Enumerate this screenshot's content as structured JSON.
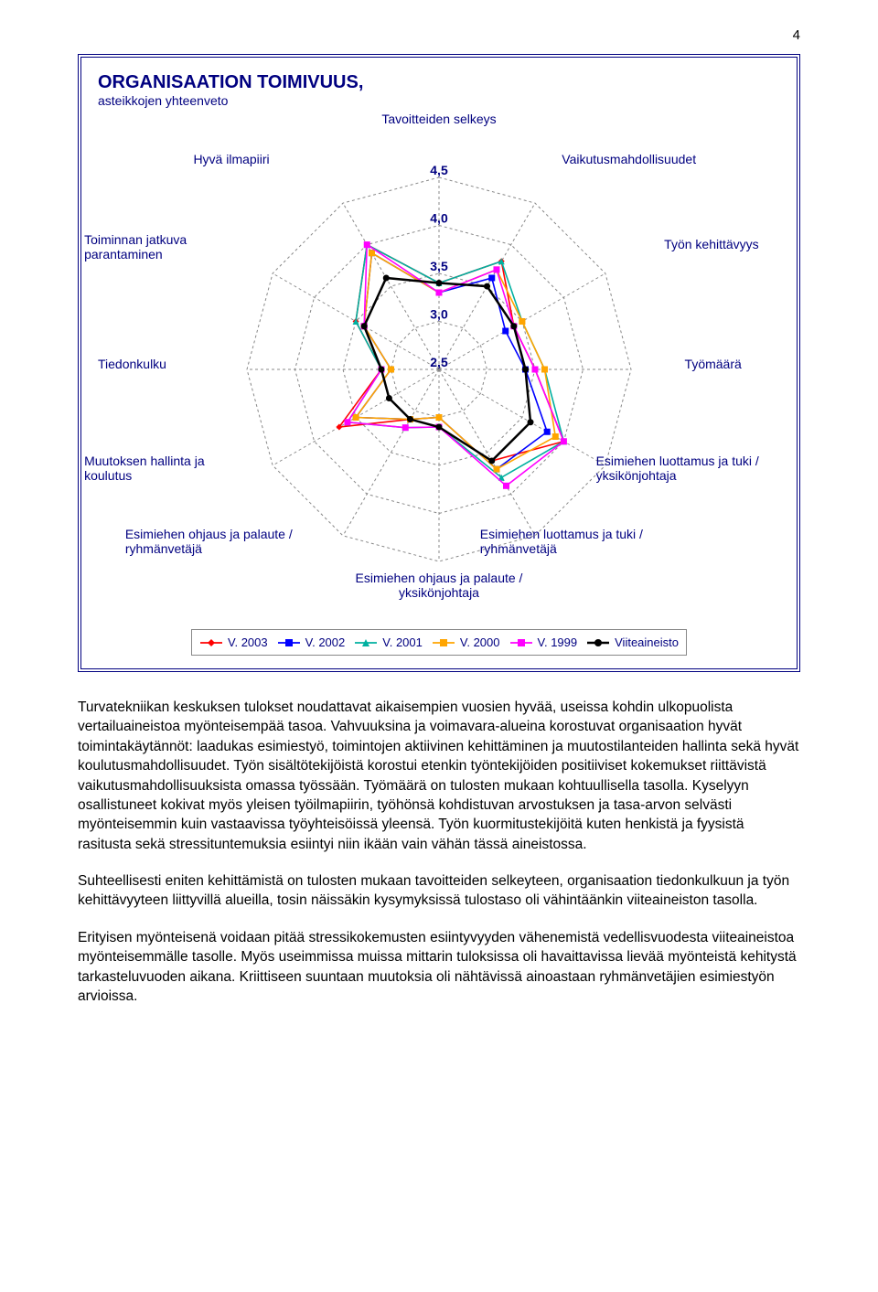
{
  "page_number": "4",
  "chart": {
    "type": "radar",
    "title": "ORGANISAATION TOIMIVUUS,",
    "subtitle": "asteikkojen yhteenveto",
    "axes": [
      "Tavoitteiden selkeys",
      "Vaikutusmahdollisuudet",
      "Työn kehittävyys",
      "Työmäärä",
      "Esimiehen luottamus ja tuki / yksikönjohtaja",
      "Esimiehen luottamus ja tuki / ryhmänvetäjä",
      "Esimiehen ohjaus ja palaute / yksikönjohtaja",
      "Esimiehen ohjaus ja palaute / ryhmänvetäjä",
      "Muutoksen hallinta ja koulutus",
      "Tiedonkulku",
      "Toiminnan jatkuva parantaminen",
      "Hyvä ilmapiiri"
    ],
    "rings": {
      "min": 2.5,
      "max": 4.5,
      "step": 0.5,
      "labels": [
        "2,5",
        "3,0",
        "3,5",
        "4,0",
        "4,5"
      ]
    },
    "series": [
      {
        "name": "V. 2003",
        "color": "#ff0000",
        "marker": "diamond",
        "values": [
          3.4,
          3.8,
          3.4,
          3.5,
          4.0,
          3.6,
          3.1,
          3.1,
          3.7,
          3.1,
          3.5,
          4.0
        ]
      },
      {
        "name": "V. 2002",
        "color": "#0000ff",
        "marker": "square",
        "values": [
          3.3,
          3.6,
          3.3,
          3.4,
          3.8,
          3.7,
          3.0,
          3.1,
          3.5,
          3.0,
          3.4,
          3.9
        ]
      },
      {
        "name": "V. 2001",
        "color": "#00b0a0",
        "marker": "triangle",
        "values": [
          3.4,
          3.8,
          3.5,
          3.6,
          4.0,
          3.8,
          3.1,
          3.2,
          3.6,
          3.1,
          3.5,
          4.0
        ]
      },
      {
        "name": "V. 2000",
        "color": "#ffa500",
        "marker": "square",
        "values": [
          3.3,
          3.7,
          3.5,
          3.6,
          3.9,
          3.7,
          3.0,
          3.1,
          3.5,
          3.0,
          3.4,
          3.9
        ]
      },
      {
        "name": "V. 1999",
        "color": "#ff00ff",
        "marker": "square",
        "values": [
          3.3,
          3.7,
          3.4,
          3.5,
          4.0,
          3.9,
          3.1,
          3.2,
          3.6,
          3.1,
          3.4,
          4.0
        ]
      },
      {
        "name": "Viiteaineisto",
        "color": "#000000",
        "marker": "circle",
        "values": [
          3.4,
          3.5,
          3.4,
          3.4,
          3.6,
          3.6,
          3.1,
          3.1,
          3.1,
          3.1,
          3.4,
          3.6
        ],
        "width": 2.5
      }
    ],
    "background_color": "#ffffff",
    "grid_color": "#888888",
    "label_fontsize": 14,
    "label_color": "#000080"
  },
  "paragraphs": [
    "Turvatekniikan keskuksen tulokset noudattavat aikaisempien vuosien hyvää, useissa kohdin ulkopuolista vertailuaineistoa myönteisempää tasoa. Vahvuuksina ja voimavara-alueina korostuvat organisaation hyvät toimintakäytännöt: laadukas esimiestyö, toimintojen aktiivinen kehittäminen ja muutostilanteiden hallinta sekä hyvät koulutusmahdollisuudet. Työn sisältötekijöistä korostui etenkin työntekijöiden positiiviset kokemukset riittävistä vaikutusmahdollisuuksista omassa työssään. Työmäärä on tulosten mukaan kohtuullisella tasolla. Kyselyyn osallistuneet kokivat myös yleisen työilmapiirin, työhönsä kohdistuvan arvostuksen ja tasa-arvon selvästi myönteisemmin kuin vastaavissa työyhteisöissä yleensä. Työn kuormitustekijöitä kuten henkistä ja fyysistä rasitusta sekä stressituntemuksia esiintyi niin ikään vain vähän tässä aineistossa.",
    "Suhteellisesti eniten kehittämistä on tulosten mukaan tavoitteiden selkeyteen, organisaation tiedonkulkuun ja työn kehittävyyteen liittyvillä alueilla, tosin näissäkin kysymyksissä tulostaso oli vähintäänkin viiteaineiston tasolla.",
    "Erityisen myönteisenä voidaan pitää stressikokemusten esiintyvyyden vähenemistä vedellisvuodesta viiteaineistoa myönteisemmälle tasolle. Myös useimmissa muissa mittarin tuloksissa oli havaittavissa lievää myönteistä kehitystä tarkasteluvuoden aikana. Kriittiseen suuntaan muutoksia oli nähtävissä ainoastaan ryhmänvetäjien esimiestyön arvioissa."
  ]
}
